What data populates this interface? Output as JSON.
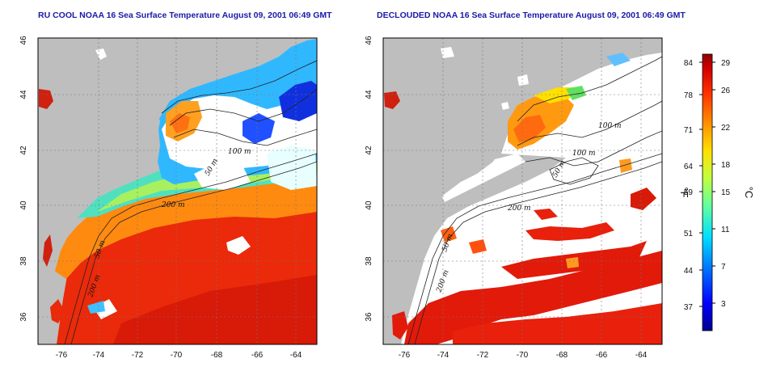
{
  "titles": {
    "left": "RU COOL NOAA 16 Sea Surface Temperature August 09, 2001 06:49 GMT",
    "right": "DECLOUDED NOAA 16 Sea Surface Temperature August 09, 2001 06:49 GMT"
  },
  "axes": {
    "x_ticks": [
      "-76",
      "-74",
      "-72",
      "-70",
      "-68",
      "-66",
      "-64"
    ],
    "y_ticks": [
      "46",
      "44",
      "42",
      "40",
      "38",
      "36"
    ]
  },
  "contour_labels": {
    "left": [
      "100 m",
      "50 m",
      "200 m",
      "50 m",
      "200 m"
    ],
    "right": [
      "100 m",
      "100 m",
      "50 m",
      "200 m",
      "50 m",
      "200 m"
    ]
  },
  "colorbar": {
    "fahrenheit_ticks": [
      "84",
      "78",
      "71",
      "64",
      "59",
      "51",
      "44",
      "37"
    ],
    "celsius_ticks": [
      "29",
      "26",
      "22",
      "18",
      "15",
      "11",
      "7",
      "3"
    ],
    "fahrenheit_unit": "°F",
    "celsius_unit": "°C",
    "colors": [
      "#00008f",
      "#0000ff",
      "#0070ff",
      "#00e0ff",
      "#60ffa0",
      "#c0ff40",
      "#ffe000",
      "#ff9000",
      "#ff3000",
      "#d00000",
      "#900000"
    ]
  },
  "colors": {
    "land": "#bebebe",
    "cloud": "#ffffff",
    "title": "#1a1aa8",
    "warm": "#e8200c",
    "mid": "#ff9a10"
  }
}
